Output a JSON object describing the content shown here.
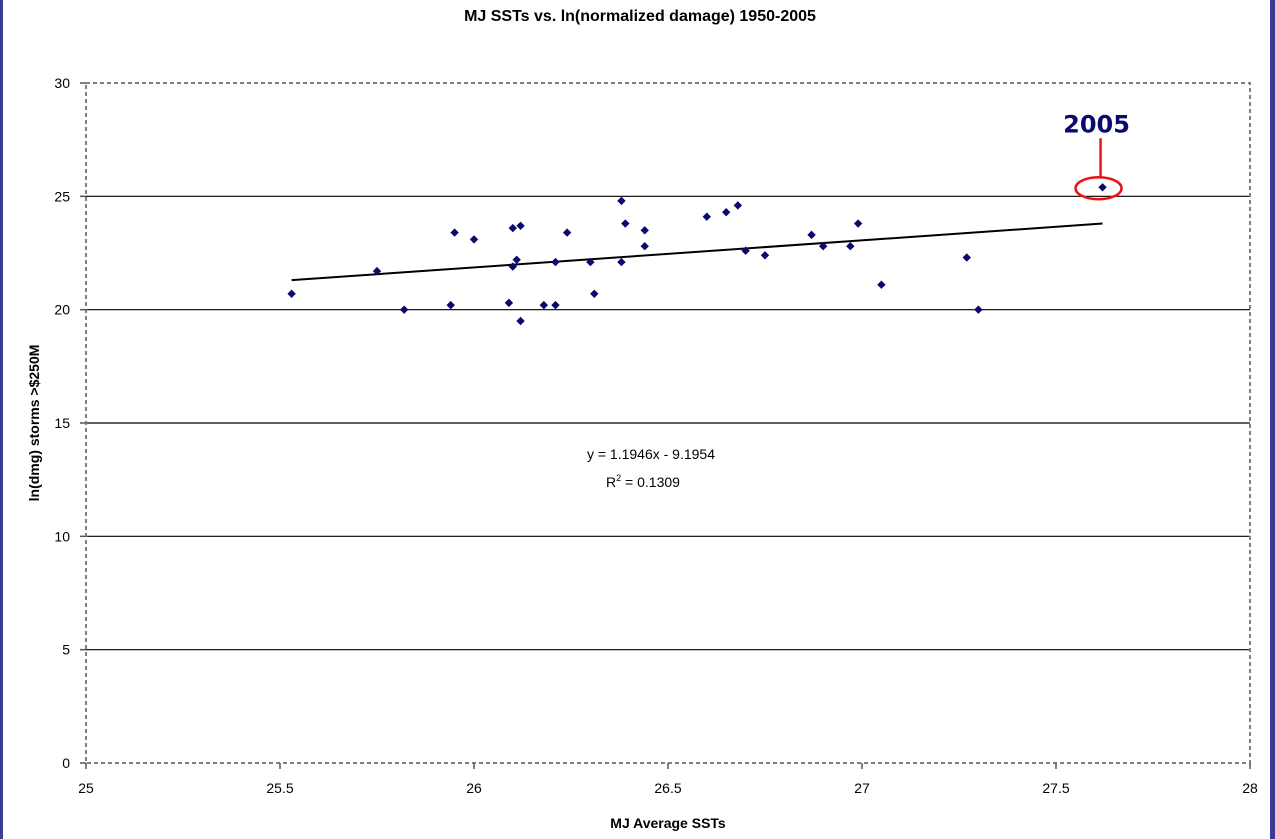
{
  "chart_data": {
    "type": "scatter",
    "title": "MJ SSTs vs. ln(normalized damage) 1950-2005",
    "xlabel": "MJ Average SSTs",
    "ylabel": "ln(dmg) storms >$250M",
    "xlim": [
      25,
      28
    ],
    "ylim": [
      0,
      30
    ],
    "x_ticks": [
      25,
      25.5,
      26,
      26.5,
      27,
      27.5,
      28
    ],
    "x_tick_labels": [
      "25",
      "25.5",
      "26",
      "26.5",
      "27",
      "27.5",
      "28"
    ],
    "y_ticks": [
      0,
      5,
      10,
      15,
      20,
      25,
      30
    ],
    "y_tick_labels": [
      "0",
      "5",
      "10",
      "15",
      "20",
      "25",
      "30"
    ],
    "grid": "horizontal",
    "colors": {
      "points": "#0a0a6e",
      "trendline": "#000000",
      "highlight": "#ee1111",
      "annotation_text": "#0a0a6e"
    },
    "points": [
      [
        25.53,
        20.7
      ],
      [
        25.75,
        21.7
      ],
      [
        25.82,
        20.0
      ],
      [
        25.94,
        20.2
      ],
      [
        25.95,
        23.4
      ],
      [
        26.0,
        23.1
      ],
      [
        26.09,
        20.3
      ],
      [
        26.1,
        21.9
      ],
      [
        26.1,
        23.6
      ],
      [
        26.11,
        22.2
      ],
      [
        26.12,
        23.7
      ],
      [
        26.12,
        19.5
      ],
      [
        26.18,
        20.2
      ],
      [
        26.21,
        20.2
      ],
      [
        26.21,
        22.1
      ],
      [
        26.24,
        23.4
      ],
      [
        26.3,
        22.1
      ],
      [
        26.31,
        20.7
      ],
      [
        26.38,
        24.8
      ],
      [
        26.38,
        22.1
      ],
      [
        26.39,
        23.8
      ],
      [
        26.44,
        23.5
      ],
      [
        26.44,
        22.8
      ],
      [
        26.6,
        24.1
      ],
      [
        26.65,
        24.3
      ],
      [
        26.68,
        24.6
      ],
      [
        26.7,
        22.6
      ],
      [
        26.75,
        22.4
      ],
      [
        26.87,
        23.3
      ],
      [
        26.9,
        22.8
      ],
      [
        26.97,
        22.8
      ],
      [
        26.99,
        23.8
      ],
      [
        27.05,
        21.1
      ],
      [
        27.27,
        22.3
      ],
      [
        27.3,
        20.0
      ],
      [
        27.62,
        25.4
      ]
    ],
    "trendline": {
      "slope": 1.1946,
      "intercept": -9.1954,
      "x_range": [
        25.53,
        27.62
      ]
    },
    "equation_label": "y = 1.1946x - 9.1954",
    "r2_label_prefix": "R",
    "r2_label_exp": "2",
    "r2_label_value": " = 0.1309",
    "highlight": {
      "label": "2005",
      "x": 27.62,
      "y": 25.4
    }
  }
}
